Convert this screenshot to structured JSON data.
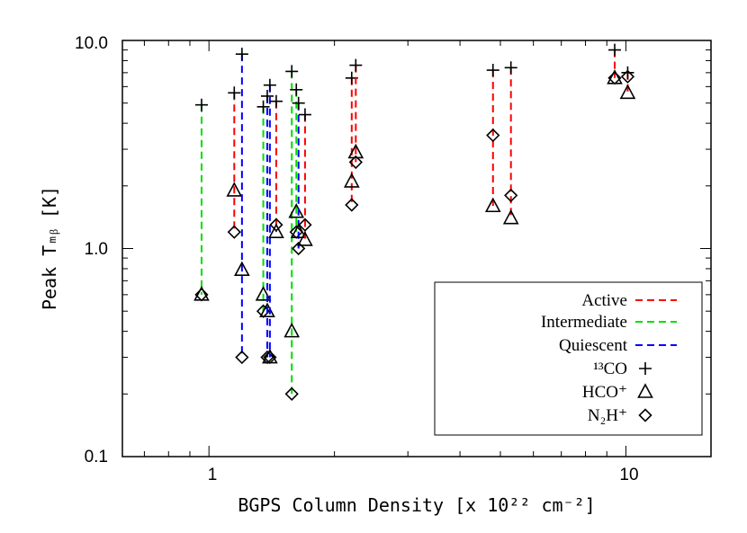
{
  "chart_data": {
    "type": "scatter",
    "title": "",
    "xlabel": "BGPS Column Density [x 10²² cm⁻²]",
    "ylabel": "Peak Tₘᵦ [K]",
    "xscale": "log",
    "yscale": "log",
    "xlim": [
      0.62,
      16
    ],
    "ylim": [
      0.1,
      10.0
    ],
    "x_ticks": [
      {
        "value": 1,
        "label": "1"
      },
      {
        "value": 10,
        "label": "10"
      }
    ],
    "y_ticks": [
      {
        "value": 0.1,
        "label": "0.1"
      },
      {
        "value": 1.0,
        "label": "1.0"
      },
      {
        "value": 10.0,
        "label": "10.0"
      }
    ],
    "grid": false,
    "legend_position": "bottom-right",
    "legend": {
      "classes": [
        {
          "name": "Active",
          "color": "#ff0000"
        },
        {
          "name": "Intermediate",
          "color": "#00dd00"
        },
        {
          "name": "Quiescent",
          "color": "#0000ff"
        }
      ],
      "markers": [
        {
          "name": "¹³CO",
          "symbol": "plus"
        },
        {
          "name": "HCO⁺",
          "symbol": "triangle"
        },
        {
          "name": "N₂H⁺",
          "symbol": "diamond"
        }
      ]
    },
    "sources": [
      {
        "x": 0.96,
        "class": "Intermediate",
        "co13": 4.9,
        "hcop": 0.6,
        "n2hp": 0.6
      },
      {
        "x": 1.15,
        "class": "Active",
        "co13": 5.6,
        "hcop": 1.9,
        "n2hp": 1.2
      },
      {
        "x": 1.2,
        "class": "Quiescent",
        "co13": 8.6,
        "hcop": 0.79,
        "n2hp": 0.3
      },
      {
        "x": 1.35,
        "class": "Intermediate",
        "co13": 4.8,
        "hcop": 0.6,
        "n2hp": 0.5
      },
      {
        "x": 1.38,
        "class": "Quiescent",
        "co13": 5.4,
        "hcop": 0.5,
        "n2hp": 0.3
      },
      {
        "x": 1.4,
        "class": "Quiescent",
        "co13": 6.1,
        "hcop": 0.3,
        "n2hp": 0.3
      },
      {
        "x": 1.45,
        "class": "Active",
        "co13": 5.1,
        "hcop": 1.2,
        "n2hp": 1.3
      },
      {
        "x": 1.58,
        "class": "Intermediate",
        "co13": 7.1,
        "hcop": 0.4,
        "n2hp": 0.2
      },
      {
        "x": 1.62,
        "class": "Intermediate",
        "co13": 5.8,
        "hcop": 1.5,
        "n2hp": 1.2
      },
      {
        "x": 1.64,
        "class": "Quiescent",
        "co13": 5.0,
        "hcop": 1.2,
        "n2hp": 1.0
      },
      {
        "x": 1.7,
        "class": "Active",
        "co13": 4.4,
        "hcop": 1.1,
        "n2hp": 1.3
      },
      {
        "x": 2.2,
        "class": "Active",
        "co13": 6.6,
        "hcop": 2.1,
        "n2hp": 1.62
      },
      {
        "x": 2.25,
        "class": "Active",
        "co13": 7.6,
        "hcop": 2.9,
        "n2hp": 2.6
      },
      {
        "x": 4.8,
        "class": "Active",
        "co13": 7.2,
        "hcop": 1.6,
        "n2hp": 3.5
      },
      {
        "x": 5.3,
        "class": "Active",
        "co13": 7.4,
        "hcop": 1.4,
        "n2hp": 1.8
      },
      {
        "x": 9.4,
        "class": "Active",
        "co13": 9.0,
        "hcop": 6.6,
        "n2hp": 6.6
      },
      {
        "x": 10.1,
        "class": "Active",
        "co13": 7.0,
        "hcop": 5.6,
        "n2hp": 6.7
      }
    ]
  }
}
